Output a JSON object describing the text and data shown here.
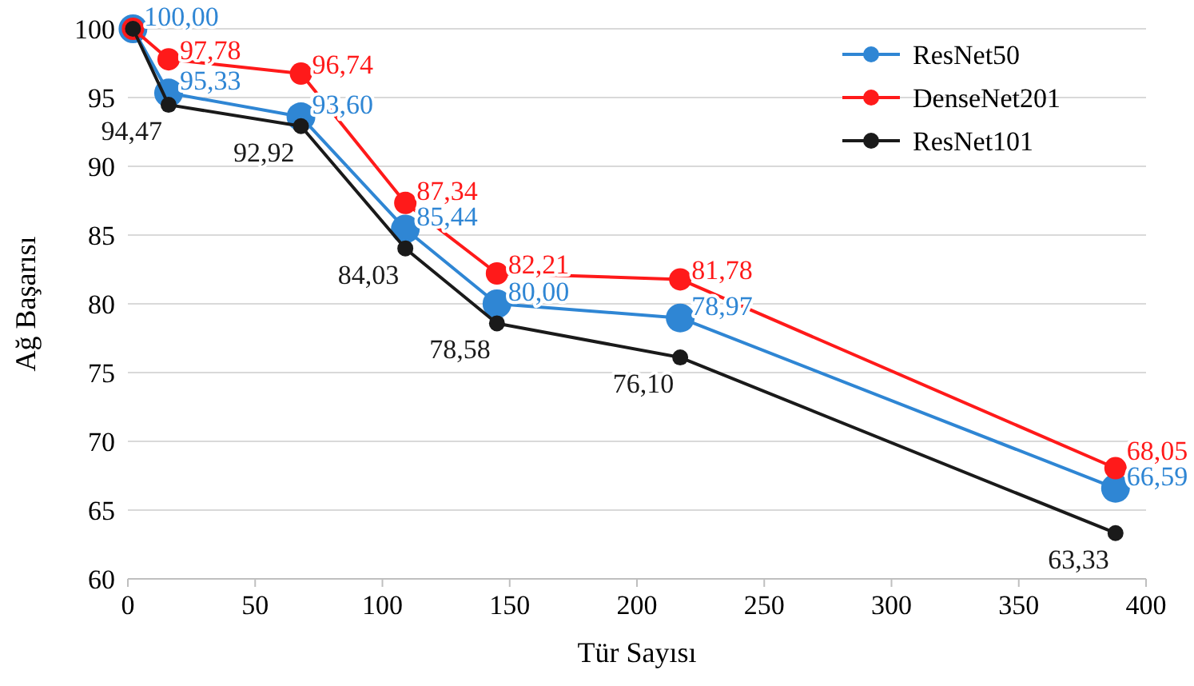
{
  "chart_data": {
    "type": "line",
    "xlabel": "Tür Sayısı",
    "ylabel": "Ağ Başarısı",
    "x": [
      2,
      16,
      68,
      109,
      145,
      217,
      388
    ],
    "xlim": [
      0,
      400
    ],
    "xticks": [
      0,
      50,
      100,
      150,
      200,
      250,
      300,
      350,
      400
    ],
    "ylim": [
      60,
      100
    ],
    "yticks": [
      60,
      65,
      70,
      75,
      80,
      85,
      90,
      95,
      100
    ],
    "grid": "y",
    "legend": "top right",
    "marker": "circle",
    "line_style": "solid",
    "series": [
      {
        "name": "ResNet50",
        "color": "#2f86d4",
        "values": [
          100,
          95.33,
          93.6,
          85.44,
          80,
          78.97,
          66.59
        ],
        "value_labels": [
          "100,00",
          "95,33",
          "93,60",
          "85,44",
          "80,00",
          "78,97",
          "66,59"
        ]
      },
      {
        "name": "DenseNet201",
        "color": "#ff1a1a",
        "values": [
          100,
          97.78,
          96.74,
          87.34,
          82.21,
          81.78,
          68.05
        ],
        "value_labels": [
          null,
          "97,78",
          "96,74",
          "87,34",
          "82,21",
          "81,78",
          "68,05"
        ]
      },
      {
        "name": "ResNet101",
        "color": "#1a1a1a",
        "values": [
          100,
          94.47,
          92.92,
          84.03,
          78.58,
          76.1,
          63.33
        ],
        "value_labels": [
          null,
          "94,47",
          "92,92",
          "84,03",
          "78,58",
          "76,10",
          "63,33"
        ]
      }
    ]
  }
}
